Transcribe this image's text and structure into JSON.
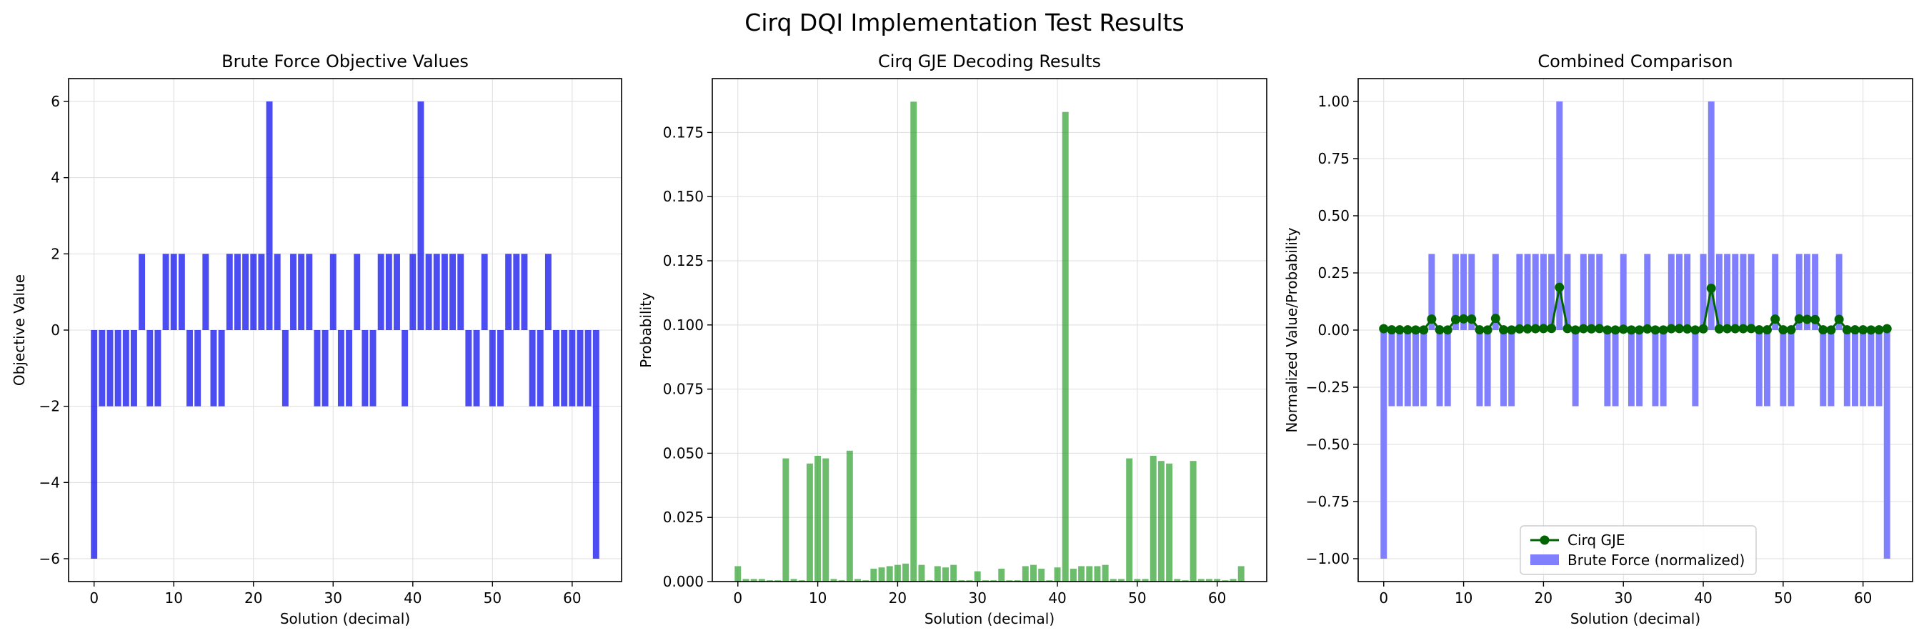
{
  "suptitle": "Cirq DQI Implementation Test Results",
  "colors": {
    "brute": "#0000ee",
    "gje": "#2ca02c",
    "combined_brute": "#8080ff",
    "combined_line": "#006400",
    "grid": "#dddddd"
  },
  "chart_data": [
    {
      "type": "bar",
      "title": "Brute Force Objective Values",
      "xlabel": "Solution (decimal)",
      "ylabel": "Objective Value",
      "xlim": [
        -3.2,
        66.2
      ],
      "ylim": [
        -6.6,
        6.6
      ],
      "xticks": [
        0,
        10,
        20,
        30,
        40,
        50,
        60
      ],
      "yticks": [
        -6,
        -4,
        -2,
        0,
        2,
        4,
        6
      ],
      "ytick_labels": [
        "−6",
        "−4",
        "−2",
        "0",
        "2",
        "4",
        "6"
      ],
      "grid": true,
      "x": [
        0,
        1,
        2,
        3,
        4,
        5,
        6,
        7,
        8,
        9,
        10,
        11,
        12,
        13,
        14,
        15,
        16,
        17,
        18,
        19,
        20,
        21,
        22,
        23,
        24,
        25,
        26,
        27,
        28,
        29,
        30,
        31,
        32,
        33,
        34,
        35,
        36,
        37,
        38,
        39,
        40,
        41,
        42,
        43,
        44,
        45,
        46,
        47,
        48,
        49,
        50,
        51,
        52,
        53,
        54,
        55,
        56,
        57,
        58,
        59,
        60,
        61,
        62,
        63
      ],
      "series": [
        {
          "values": [
            -6,
            -2,
            -2,
            -2,
            -2,
            -2,
            2,
            -2,
            -2,
            2,
            2,
            2,
            -2,
            -2,
            2,
            -2,
            -2,
            2,
            2,
            2,
            2,
            2,
            6,
            2,
            -2,
            2,
            2,
            2,
            -2,
            -2,
            2,
            -2,
            -2,
            2,
            -2,
            -2,
            2,
            2,
            2,
            -2,
            2,
            6,
            2,
            2,
            2,
            2,
            2,
            -2,
            -2,
            2,
            -2,
            -2,
            2,
            2,
            2,
            -2,
            -2,
            2,
            -2,
            -2,
            -2,
            -2,
            -2,
            -6
          ]
        }
      ]
    },
    {
      "type": "bar",
      "title": "Cirq GJE Decoding Results",
      "xlabel": "Solution (decimal)",
      "ylabel": "Probability",
      "xlim": [
        -3.2,
        66.2
      ],
      "ylim": [
        0,
        0.196
      ],
      "xticks": [
        0,
        10,
        20,
        30,
        40,
        50,
        60
      ],
      "yticks": [
        0,
        0.025,
        0.05,
        0.075,
        0.1,
        0.125,
        0.15,
        0.175
      ],
      "ytick_labels": [
        "0.000",
        "0.025",
        "0.050",
        "0.075",
        "0.100",
        "0.125",
        "0.150",
        "0.175"
      ],
      "grid": true,
      "x": [
        0,
        1,
        2,
        3,
        4,
        5,
        6,
        7,
        8,
        9,
        10,
        11,
        12,
        13,
        14,
        15,
        16,
        17,
        18,
        19,
        20,
        21,
        22,
        23,
        24,
        25,
        26,
        27,
        28,
        29,
        30,
        31,
        32,
        33,
        34,
        35,
        36,
        37,
        38,
        39,
        40,
        41,
        42,
        43,
        44,
        45,
        46,
        47,
        48,
        49,
        50,
        51,
        52,
        53,
        54,
        55,
        56,
        57,
        58,
        59,
        60,
        61,
        62,
        63
      ],
      "series": [
        {
          "values": [
            0.006,
            0.001,
            0.001,
            0.001,
            0.0005,
            0.0005,
            0.048,
            0.001,
            0.0005,
            0.046,
            0.049,
            0.048,
            0.001,
            0.0005,
            0.051,
            0.001,
            0.0005,
            0.005,
            0.0055,
            0.006,
            0.0065,
            0.007,
            0.187,
            0.0065,
            0.0005,
            0.006,
            0.0055,
            0.0065,
            0.0005,
            0.0005,
            0.004,
            0.0005,
            0.0005,
            0.005,
            0.0005,
            0.0005,
            0.006,
            0.0065,
            0.005,
            0.0005,
            0.0055,
            0.183,
            0.005,
            0.006,
            0.006,
            0.006,
            0.0065,
            0.001,
            0.001,
            0.048,
            0.001,
            0.001,
            0.049,
            0.047,
            0.046,
            0.001,
            0.0005,
            0.047,
            0.001,
            0.001,
            0.001,
            0.0005,
            0.001,
            0.006
          ]
        }
      ]
    },
    {
      "type": "bar",
      "title": "Combined Comparison",
      "xlabel": "Solution (decimal)",
      "ylabel": "Normalized Value/Probability",
      "xlim": [
        -3.2,
        66.2
      ],
      "ylim": [
        -1.1,
        1.1
      ],
      "xticks": [
        0,
        10,
        20,
        30,
        40,
        50,
        60
      ],
      "yticks": [
        -1,
        -0.75,
        -0.5,
        -0.25,
        0,
        0.25,
        0.5,
        0.75,
        1
      ],
      "ytick_labels": [
        "−1.00",
        "−0.75",
        "−0.50",
        "−0.25",
        "0.00",
        "0.25",
        "0.50",
        "0.75",
        "1.00"
      ],
      "grid": true,
      "legend": "lower center",
      "x": [
        0,
        1,
        2,
        3,
        4,
        5,
        6,
        7,
        8,
        9,
        10,
        11,
        12,
        13,
        14,
        15,
        16,
        17,
        18,
        19,
        20,
        21,
        22,
        23,
        24,
        25,
        26,
        27,
        28,
        29,
        30,
        31,
        32,
        33,
        34,
        35,
        36,
        37,
        38,
        39,
        40,
        41,
        42,
        43,
        44,
        45,
        46,
        47,
        48,
        49,
        50,
        51,
        52,
        53,
        54,
        55,
        56,
        57,
        58,
        59,
        60,
        61,
        62,
        63
      ],
      "series": [
        {
          "name": "Cirq GJE",
          "kind": "line",
          "values": [
            0.006,
            0.001,
            0.001,
            0.001,
            0.0005,
            0.0005,
            0.048,
            0.001,
            0.0005,
            0.046,
            0.049,
            0.048,
            0.001,
            0.0005,
            0.051,
            0.001,
            0.0005,
            0.005,
            0.0055,
            0.006,
            0.0065,
            0.007,
            0.187,
            0.0065,
            0.0005,
            0.006,
            0.0055,
            0.0065,
            0.0005,
            0.0005,
            0.004,
            0.0005,
            0.0005,
            0.005,
            0.0005,
            0.0005,
            0.006,
            0.0065,
            0.005,
            0.0005,
            0.0055,
            0.183,
            0.005,
            0.006,
            0.006,
            0.006,
            0.0065,
            0.001,
            0.001,
            0.048,
            0.001,
            0.001,
            0.049,
            0.047,
            0.046,
            0.001,
            0.0005,
            0.047,
            0.001,
            0.001,
            0.001,
            0.0005,
            0.001,
            0.006
          ]
        },
        {
          "name": "Brute Force (normalized)",
          "kind": "bar",
          "values": [
            -1,
            -0.333,
            -0.333,
            -0.333,
            -0.333,
            -0.333,
            0.333,
            -0.333,
            -0.333,
            0.333,
            0.333,
            0.333,
            -0.333,
            -0.333,
            0.333,
            -0.333,
            -0.333,
            0.333,
            0.333,
            0.333,
            0.333,
            0.333,
            1,
            0.333,
            -0.333,
            0.333,
            0.333,
            0.333,
            -0.333,
            -0.333,
            0.333,
            -0.333,
            -0.333,
            0.333,
            -0.333,
            -0.333,
            0.333,
            0.333,
            0.333,
            -0.333,
            0.333,
            1,
            0.333,
            0.333,
            0.333,
            0.333,
            0.333,
            -0.333,
            -0.333,
            0.333,
            -0.333,
            -0.333,
            0.333,
            0.333,
            0.333,
            -0.333,
            -0.333,
            0.333,
            -0.333,
            -0.333,
            -0.333,
            -0.333,
            -0.333,
            -1
          ]
        }
      ]
    }
  ]
}
